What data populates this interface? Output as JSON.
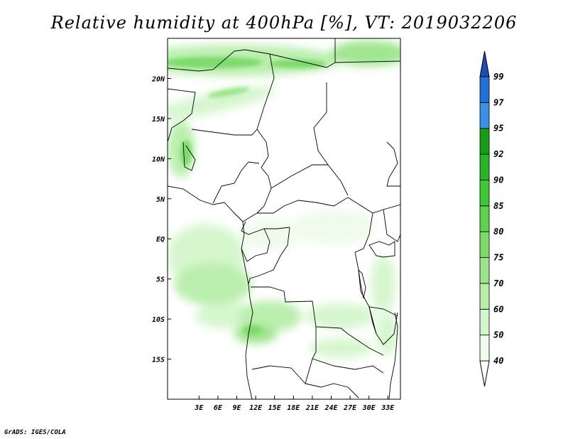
{
  "title": "Relative humidity at 400hPa [%], VT: 2019032206",
  "credit": "GrADS: IGES/COLA",
  "map": {
    "lon_range": [
      -2,
      35
    ],
    "lat_range": [
      -20,
      25
    ],
    "lon_ticks": [
      "3E",
      "6E",
      "9E",
      "12E",
      "15E",
      "18E",
      "21E",
      "24E",
      "27E",
      "30E",
      "33E"
    ],
    "lat_ticks": [
      "20N",
      "15N",
      "10N",
      "5N",
      "EQ",
      "5S",
      "10S",
      "15S"
    ],
    "lon_tick_values": [
      3,
      6,
      9,
      12,
      15,
      18,
      21,
      24,
      27,
      30,
      33
    ],
    "lat_tick_values": [
      20,
      15,
      10,
      5,
      0,
      -5,
      -10,
      -15
    ]
  },
  "colorbar": {
    "levels": [
      "40",
      "50",
      "60",
      "70",
      "75",
      "80",
      "85",
      "90",
      "92",
      "95",
      "97",
      "99"
    ],
    "colors": [
      "#eefbea",
      "#d4f6cc",
      "#b8eeaa",
      "#9be48a",
      "#7ddb6c",
      "#5fd34f",
      "#42c638",
      "#2ab324",
      "#169e15",
      "#3a90e6",
      "#2070d6",
      "#1a4fb5"
    ]
  }
}
